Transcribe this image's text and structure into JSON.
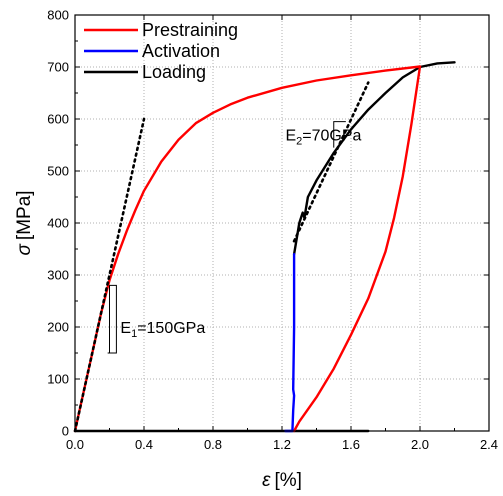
{
  "chart_data": {
    "type": "line",
    "title": "",
    "xlabel": {
      "symbol": "ε",
      "unit": "[%]"
    },
    "ylabel": {
      "symbol": "σ",
      "unit": "[MPa]"
    },
    "xlim": [
      0.0,
      2.4
    ],
    "ylim": [
      0,
      800
    ],
    "xticks": [
      "0.0",
      "0.4",
      "0.8",
      "1.2",
      "1.6",
      "2.0",
      "2.4"
    ],
    "yticks": [
      "0",
      "100",
      "200",
      "300",
      "400",
      "500",
      "600",
      "700",
      "800"
    ],
    "grid": true,
    "legend_position": "top-left",
    "series": [
      {
        "name": "Prestraining",
        "color": "#ff0000",
        "segments": [
          [
            [
              0.0,
              0
            ],
            [
              0.05,
              75
            ],
            [
              0.1,
              150
            ],
            [
              0.15,
              225
            ],
            [
              0.2,
              290
            ],
            [
              0.25,
              340
            ],
            [
              0.3,
              385
            ],
            [
              0.35,
              425
            ],
            [
              0.4,
              462
            ],
            [
              0.5,
              518
            ],
            [
              0.6,
              560
            ],
            [
              0.7,
              592
            ],
            [
              0.8,
              612
            ],
            [
              0.9,
              628
            ],
            [
              1.0,
              641
            ],
            [
              1.2,
              660
            ],
            [
              1.4,
              674
            ],
            [
              1.6,
              684
            ],
            [
              1.8,
              693
            ],
            [
              2.0,
              701
            ]
          ],
          [
            [
              2.0,
              701
            ],
            [
              1.95,
              590
            ],
            [
              1.9,
              490
            ],
            [
              1.85,
              410
            ],
            [
              1.8,
              345
            ],
            [
              1.7,
              255
            ],
            [
              1.6,
              185
            ],
            [
              1.5,
              120
            ],
            [
              1.4,
              65
            ],
            [
              1.3,
              18
            ],
            [
              1.27,
              0
            ]
          ]
        ]
      },
      {
        "name": "Activation",
        "color": "#0000ff",
        "segments": [
          [
            [
              1.22,
              0
            ],
            [
              1.26,
              0
            ],
            [
              1.265,
              40
            ],
            [
              1.27,
              68
            ],
            [
              1.265,
              80
            ],
            [
              1.27,
              200
            ],
            [
              1.27,
              340
            ]
          ]
        ]
      },
      {
        "name": "Loading",
        "color": "#000000",
        "segments": [
          [
            [
              0.0,
              0
            ],
            [
              1.7,
              0
            ]
          ],
          [
            [
              1.27,
              340
            ],
            [
              1.3,
              400
            ],
            [
              1.32,
              420
            ],
            [
              1.33,
              410
            ],
            [
              1.35,
              450
            ],
            [
              1.4,
              482
            ],
            [
              1.5,
              535
            ],
            [
              1.6,
              580
            ],
            [
              1.7,
              618
            ],
            [
              1.8,
              650
            ],
            [
              1.9,
              680
            ],
            [
              2.0,
              700
            ],
            [
              2.1,
              707
            ],
            [
              2.2,
              709
            ]
          ]
        ]
      }
    ],
    "fit_lines": [
      {
        "points": [
          [
            0.0,
            0
          ],
          [
            0.4,
            600
          ]
        ],
        "style": "dotted"
      },
      {
        "points": [
          [
            1.27,
            365
          ],
          [
            1.7,
            670
          ]
        ],
        "style": "dotted"
      }
    ],
    "annotations": [
      {
        "base": "E",
        "sub": "1",
        "text": "=150GPa",
        "at": [
          0.24,
          200
        ]
      },
      {
        "base": "E",
        "sub": "2",
        "text": "=70GPa",
        "at": [
          1.48,
          570
        ]
      }
    ]
  }
}
